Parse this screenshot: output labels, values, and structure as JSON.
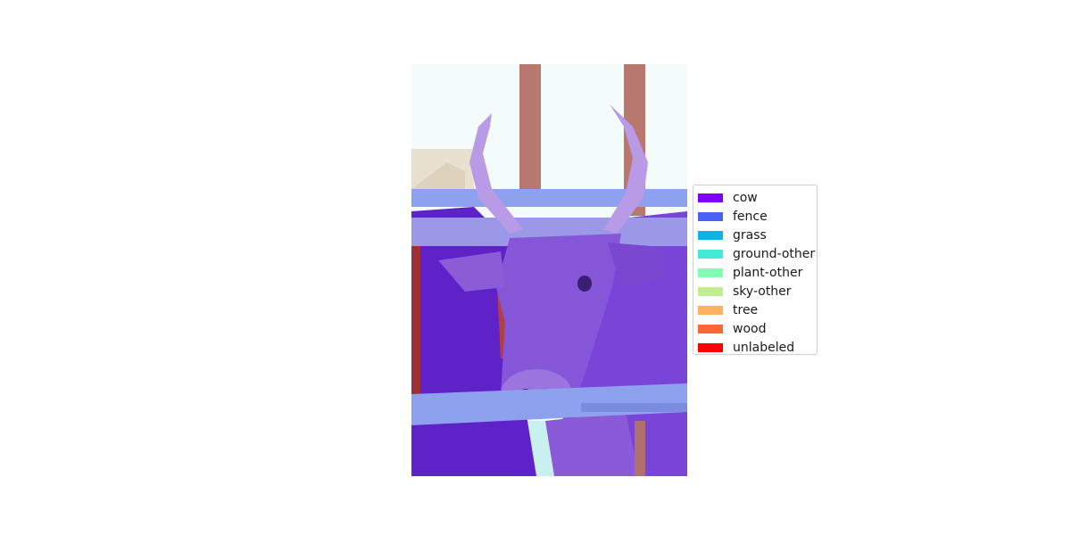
{
  "legend": {
    "items": [
      {
        "label": "cow",
        "color": "#7f00ff"
      },
      {
        "label": "fence",
        "color": "#4a63f7"
      },
      {
        "label": "grass",
        "color": "#0eb3e6"
      },
      {
        "label": "ground-other",
        "color": "#44e8d6"
      },
      {
        "label": "plant-other",
        "color": "#80ffb4"
      },
      {
        "label": "sky-other",
        "color": "#c0ee8c"
      },
      {
        "label": "tree",
        "color": "#feb064"
      },
      {
        "label": "wood",
        "color": "#ff6635"
      },
      {
        "label": "unlabeled",
        "color": "#ff0000"
      }
    ]
  }
}
